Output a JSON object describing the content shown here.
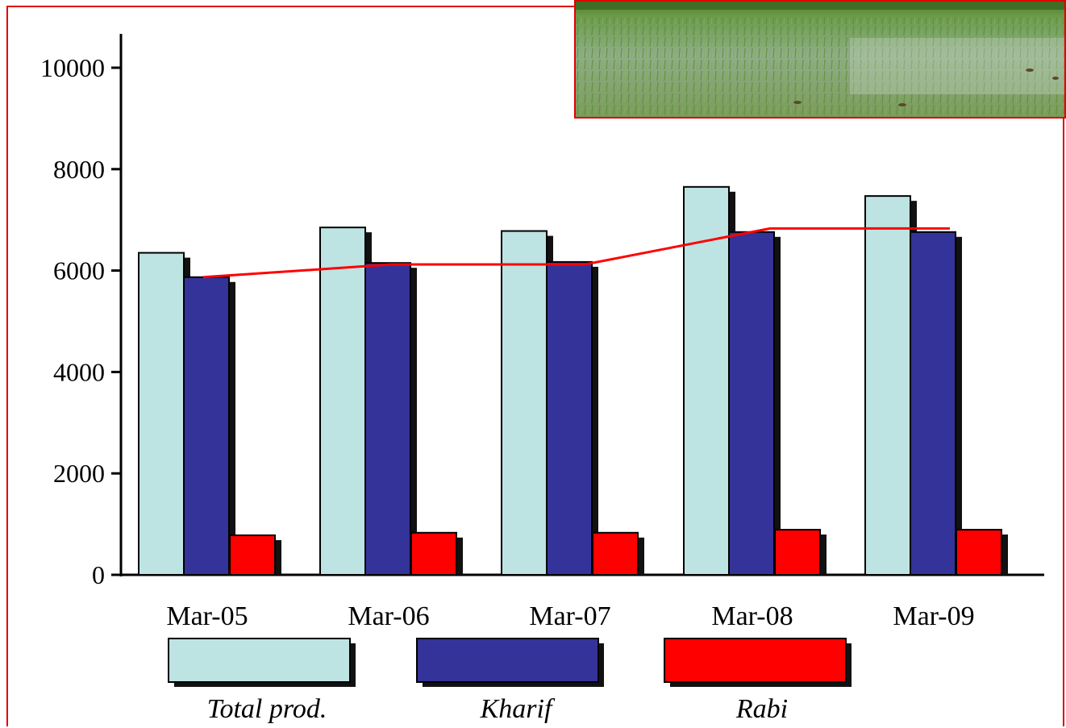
{
  "chart_data": {
    "type": "bar",
    "categories": [
      "Mar-05",
      "Mar-06",
      "Mar-07",
      "Mar-08",
      "Mar-09"
    ],
    "series": [
      {
        "name": "Total prod.",
        "values": [
          6350,
          6850,
          6780,
          7650,
          7470
        ],
        "color": "#bde3e3"
      },
      {
        "name": "Kharif",
        "values": [
          5870,
          6150,
          6170,
          6760,
          6760
        ],
        "color": "#343399"
      },
      {
        "name": "Rabi",
        "values": [
          780,
          830,
          830,
          890,
          890
        ],
        "color": "#ff0000"
      }
    ],
    "trend_line": {
      "values": [
        5870,
        6120,
        6120,
        6830,
        6830
      ],
      "color": "#ff0000"
    },
    "y_ticks": [
      "0",
      "2000",
      "4000",
      "6000",
      "8000",
      "10000"
    ],
    "ylim": [
      0,
      10600
    ],
    "legend_position": "bottom",
    "title": "",
    "xlabel": "",
    "ylabel": ""
  },
  "photo": {
    "description_icon": "rice-paddy-photo"
  }
}
